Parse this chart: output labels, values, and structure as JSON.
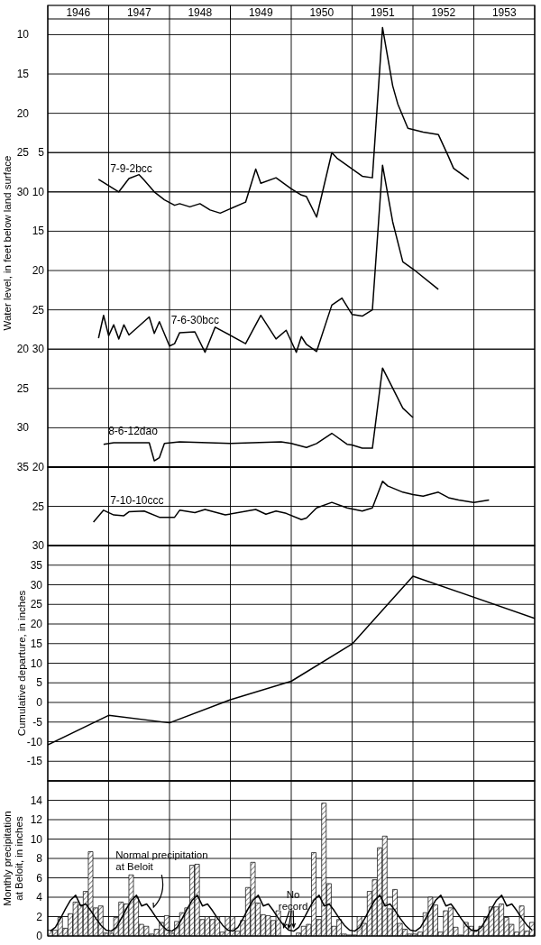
{
  "chart_data": [
    {
      "type": "line",
      "ylabel": "Water level, in feet below land surface",
      "xlim": [
        "1946-01",
        "1954-01"
      ],
      "xticks": [
        {
          "value": "1946-01",
          "label": null
        },
        {
          "value": "1946-07",
          "label": "1946"
        },
        {
          "value": "1947-01",
          "label": null
        },
        {
          "value": "1947-07",
          "label": "1947"
        },
        {
          "value": "1948-01",
          "label": null
        },
        {
          "value": "1948-07",
          "label": "1948"
        },
        {
          "value": "1949-01",
          "label": null
        },
        {
          "value": "1949-07",
          "label": "1949"
        },
        {
          "value": "1950-01",
          "label": null
        },
        {
          "value": "1950-07",
          "label": "1950"
        },
        {
          "value": "1951-01",
          "label": null
        },
        {
          "value": "1951-07",
          "label": "1951"
        },
        {
          "value": "1952-01",
          "label": null
        },
        {
          "value": "1952-07",
          "label": "1952"
        },
        {
          "value": "1953-01",
          "label": null
        },
        {
          "value": "1953-07",
          "label": "1953"
        },
        {
          "value": "1954-01",
          "label": null
        }
      ],
      "ylim": [
        65,
        8
      ],
      "yticks": [
        10,
        15,
        20,
        25,
        30
      ],
      "y2lim": [
        45,
        -12
      ],
      "y2ticks": [
        5,
        10,
        15,
        20,
        25,
        30
      ],
      "y3lim": [
        35,
        -22
      ],
      "y3ticks": [
        20,
        25,
        30,
        35
      ],
      "grid": true,
      "series": [
        {
          "name": "7-9-2bcc",
          "color": "#000000",
          "axis": "y",
          "x": [
            "1946-11",
            "1947-02",
            "1947-03",
            "1947-05",
            "1947-07",
            "1947-08",
            "1947-10",
            "1947-12",
            "1948-02",
            "1948-03",
            "1948-05",
            "1948-07",
            "1948-09",
            "1948-11",
            "1949-04",
            "1949-06",
            "1949-07",
            "1949-10",
            "1950-01",
            "1950-03",
            "1950-04",
            "1950-06",
            "1950-09",
            "1950-10",
            "1951-03",
            "1951-05",
            "1951-07",
            "1951-09",
            "1951-10",
            "1951-12",
            "1952-03",
            "1952-06",
            "1952-08",
            "1952-09",
            "1952-12"
          ],
          "values": [
            28.4,
            29.6,
            30.0,
            28.3,
            27.8,
            28.5,
            30.0,
            31.0,
            31.7,
            31.5,
            31.9,
            31.5,
            32.3,
            32.7,
            31.3,
            27.1,
            28.9,
            28.2,
            29.6,
            30.4,
            30.6,
            33.2,
            25.0,
            25.7,
            28.0,
            28.2,
            9.1,
            16.5,
            18.8,
            21.9,
            22.4,
            22.7,
            25.5,
            27.0,
            28.4
          ]
        },
        {
          "name": "7-6-30bcc",
          "color": "#000000",
          "axis": "y2",
          "x": [
            "1946-11",
            "1946-12",
            "1947-01",
            "1947-02",
            "1947-03",
            "1947-04",
            "1947-05",
            "1947-09",
            "1947-10",
            "1947-11",
            "1948-01",
            "1948-02",
            "1948-03",
            "1948-06",
            "1948-08",
            "1948-10",
            "1949-04",
            "1949-07",
            "1949-10",
            "1949-12",
            "1950-02",
            "1950-03",
            "1950-04",
            "1950-06",
            "1950-09",
            "1950-11",
            "1951-01",
            "1951-03",
            "1951-05",
            "1951-07",
            "1951-09",
            "1951-11",
            "1952-01",
            "1952-06"
          ],
          "values": [
            28.6,
            25.7,
            28.3,
            26.9,
            28.7,
            26.9,
            28.2,
            25.9,
            28.0,
            26.5,
            29.6,
            29.3,
            27.9,
            27.8,
            30.4,
            27.2,
            29.3,
            25.7,
            28.7,
            27.6,
            30.4,
            28.4,
            29.4,
            30.3,
            24.4,
            23.5,
            25.6,
            25.8,
            25.0,
            6.6,
            13.8,
            18.9,
            19.8,
            22.4
          ]
        },
        {
          "name": "8-6-12dao",
          "color": "#000000",
          "axis": "y3",
          "x": [
            "1946-12",
            "1947-02",
            "1947-09",
            "1947-10",
            "1947-11",
            "1947-12",
            "1948-03",
            "1949-01",
            "1949-11",
            "1950-01",
            "1950-04",
            "1950-06",
            "1950-09",
            "1950-12",
            "1951-01",
            "1951-03",
            "1951-05",
            "1951-07",
            "1951-11",
            "1952-01"
          ],
          "values": [
            32.1,
            31.9,
            31.9,
            34.2,
            33.8,
            32.0,
            31.8,
            32.0,
            31.8,
            32.0,
            32.5,
            32.0,
            30.7,
            32.1,
            32.2,
            32.6,
            32.6,
            22.4,
            27.5,
            28.7
          ]
        }
      ]
    },
    {
      "type": "line",
      "xlim": [
        "1946-01",
        "1954-01"
      ],
      "xticks": [
        {
          "value": "1946-01",
          "label": null
        },
        {
          "value": "1947-01",
          "label": null
        },
        {
          "value": "1948-01",
          "label": null
        },
        {
          "value": "1949-01",
          "label": null
        },
        {
          "value": "1950-01",
          "label": null
        },
        {
          "value": "1951-01",
          "label": null
        },
        {
          "value": "1952-01",
          "label": null
        },
        {
          "value": "1953-01",
          "label": null
        },
        {
          "value": "1954-01",
          "label": null
        }
      ],
      "ylim": [
        30,
        20
      ],
      "yticks": [
        20,
        25,
        30
      ],
      "grid": true,
      "tick_labels": "y",
      "series": [
        {
          "name": "7-10-10ccc",
          "color": "#000000",
          "axis": "y",
          "x": [
            "1946-10",
            "1946-12",
            "1947-02",
            "1947-04",
            "1947-05",
            "1947-08",
            "1947-11",
            "1948-02",
            "1948-03",
            "1948-06",
            "1948-08",
            "1948-12",
            "1949-06",
            "1949-08",
            "1949-10",
            "1949-12",
            "1950-03",
            "1950-04",
            "1950-06",
            "1950-09",
            "1950-12",
            "1951-03",
            "1951-05",
            "1951-07",
            "1951-08",
            "1951-11",
            "1952-01",
            "1952-03",
            "1952-06",
            "1952-08",
            "1952-10",
            "1953-01",
            "1953-04"
          ],
          "values": [
            27.0,
            25.5,
            26.1,
            26.2,
            25.7,
            25.6,
            26.4,
            26.4,
            25.5,
            25.8,
            25.4,
            26.1,
            25.4,
            26.0,
            25.6,
            25.9,
            26.7,
            26.5,
            25.2,
            24.5,
            25.2,
            25.6,
            25.2,
            21.8,
            22.4,
            23.2,
            23.5,
            23.7,
            23.2,
            23.9,
            24.2,
            24.5,
            24.2
          ]
        }
      ]
    },
    {
      "type": "line",
      "ylabel": "Cumulative departure, in inches",
      "x": [
        "1946-01",
        "1947-01",
        "1948-01",
        "1949-01",
        "1950-01",
        "1951-01",
        "1952-01",
        "1954-01"
      ],
      "values": [
        -10.8,
        -3.3,
        -5.2,
        0.7,
        5.4,
        14.9,
        32.2,
        21.4
      ],
      "color": "#000000",
      "xlim": [
        "1946-01",
        "1954-01"
      ],
      "xticks": [
        {
          "value": "1946-01",
          "label": null
        },
        {
          "value": "1947-01",
          "label": null
        },
        {
          "value": "1948-01",
          "label": null
        },
        {
          "value": "1949-01",
          "label": null
        },
        {
          "value": "1950-01",
          "label": null
        },
        {
          "value": "1951-01",
          "label": null
        },
        {
          "value": "1952-01",
          "label": null
        },
        {
          "value": "1953-01",
          "label": null
        },
        {
          "value": "1954-01",
          "label": null
        }
      ],
      "ylim": [
        -20,
        40
      ],
      "yticks": [
        -15,
        -10,
        -5,
        0,
        5,
        10,
        15,
        20,
        25,
        30,
        35
      ],
      "grid": true,
      "tick_labels": "y"
    },
    {
      "type": "bar",
      "ylabel": "Monthly precipitation at Beloit, in inches",
      "xlim": [
        "1946-01",
        "1954-01"
      ],
      "xticks": [
        {
          "value": "1946-01",
          "label": null
        },
        {
          "value": "1947-01",
          "label": null
        },
        {
          "value": "1948-01",
          "label": null
        },
        {
          "value": "1949-01",
          "label": null
        },
        {
          "value": "1950-01",
          "label": null
        },
        {
          "value": "1951-01",
          "label": null
        },
        {
          "value": "1952-01",
          "label": null
        },
        {
          "value": "1953-01",
          "label": null
        },
        {
          "value": "1954-01",
          "label": null
        }
      ],
      "ylim": [
        0,
        16
      ],
      "yticks": [
        0,
        2,
        4,
        6,
        8,
        10,
        12,
        14
      ],
      "grid": true,
      "tick_labels": "y",
      "x": [
        "1946-01-16",
        "1946-02-16",
        "1946-03-16",
        "1946-04-16",
        "1946-05-16",
        "1946-06-16",
        "1946-07-16",
        "1946-08-16",
        "1946-09-16",
        "1946-10-16",
        "1946-11-16",
        "1946-12-16",
        "1947-01-16",
        "1947-02-16",
        "1947-03-16",
        "1947-04-16",
        "1947-05-16",
        "1947-06-16",
        "1947-07-16",
        "1947-08-16",
        "1947-09-16",
        "1947-10-16",
        "1947-11-16",
        "1947-12-16",
        "1948-01-16",
        "1948-02-16",
        "1948-03-16",
        "1948-04-16",
        "1948-05-16",
        "1948-06-16",
        "1948-07-16",
        "1948-08-16",
        "1948-09-16",
        "1948-10-16",
        "1948-11-16",
        "1948-12-16",
        "1949-01-16",
        "1949-02-16",
        "1949-03-16",
        "1949-04-16",
        "1949-05-16",
        "1949-06-16",
        "1949-07-16",
        "1949-08-16",
        "1949-09-16",
        "1949-10-16",
        "1949-11-16",
        "1949-12-16",
        "1950-01-16",
        "1950-02-16",
        "1950-03-16",
        "1950-04-16",
        "1950-05-16",
        "1950-06-16",
        "1950-07-16",
        "1950-08-16",
        "1950-09-16",
        "1950-10-16",
        "1950-11-16",
        "1950-12-16",
        "1951-01-16",
        "1951-02-16",
        "1951-03-16",
        "1951-04-16",
        "1951-05-16",
        "1951-06-16",
        "1951-07-16",
        "1951-08-16",
        "1951-09-16",
        "1951-10-16",
        "1951-11-16",
        "1951-12-16",
        "1952-01-16",
        "1952-02-16",
        "1952-03-16",
        "1952-04-16",
        "1952-05-16",
        "1952-06-16",
        "1952-07-16",
        "1952-08-16",
        "1952-09-16",
        "1952-10-16",
        "1952-11-16",
        "1952-12-16",
        "1953-01-16",
        "1953-02-16",
        "1953-03-16",
        "1953-04-16",
        "1953-05-16",
        "1953-06-16",
        "1953-07-16",
        "1953-08-16",
        "1953-09-16",
        "1953-10-16",
        "1953-11-16",
        "1953-12-16"
      ],
      "series": [
        {
          "type": "bar",
          "color": "#000000",
          "values": [
            0.6,
            0.6,
            1.9,
            0.8,
            2.3,
            3.5,
            3.2,
            4.6,
            8.7,
            2.9,
            3.1,
            0.3,
            0.3,
            1.9,
            3.5,
            3.3,
            6.3,
            4.0,
            1.2,
            1.0,
            0.2,
            0.7,
            1.4,
            2.1,
            0.3,
            1.5,
            2.4,
            2.9,
            7.3,
            7.4,
            1.7,
            2.0,
            1.7,
            2.0,
            0.4,
            2.0,
            2.0,
            0.5,
            1.6,
            5.0,
            7.6,
            3.4,
            2.2,
            2.1,
            1.6,
            2.6,
            null,
            null,
            null,
            0.3,
            1.0,
            1.2,
            8.6,
            1.7,
            13.7,
            5.4,
            1.0,
            1.7,
            0.2,
            0.1,
            0.1,
            2.0,
            1.3,
            4.6,
            5.8,
            9.1,
            10.3,
            2.8,
            4.8,
            1.3,
            0.7,
            0.2,
            0.2,
            0.4,
            2.4,
            4.0,
            3.2,
            0.4,
            2.6,
            2.9,
            0.9,
            0.1,
            1.4,
            1.0,
            0.6,
            1.0,
            1.9,
            3.0,
            3.0,
            3.3,
            1.9,
            1.2,
            0.4,
            3.1,
            0.5,
            1.4
          ]
        },
        {
          "type": "line",
          "color": "#000000",
          "values": [
            0.5,
            0.9,
            1.8,
            2.8,
            3.7,
            4.2,
            3.1,
            3.3,
            2.6,
            1.8,
            1.1,
            0.6,
            0.5,
            0.9,
            1.8,
            2.8,
            3.7,
            4.2,
            3.1,
            3.3,
            2.6,
            1.8,
            1.1,
            0.6,
            0.5,
            0.9,
            1.8,
            2.8,
            3.7,
            4.2,
            3.1,
            3.3,
            2.6,
            1.8,
            1.1,
            0.6,
            0.5,
            0.9,
            1.8,
            2.8,
            3.7,
            4.2,
            3.1,
            3.3,
            2.6,
            1.8,
            1.1,
            0.6,
            0.5,
            0.9,
            1.8,
            2.8,
            3.7,
            4.2,
            3.1,
            3.3,
            2.6,
            1.8,
            1.1,
            0.6,
            0.5,
            0.9,
            1.8,
            2.8,
            3.7,
            4.2,
            3.1,
            3.3,
            2.6,
            1.8,
            1.1,
            0.6,
            0.5,
            0.9,
            1.8,
            2.8,
            3.7,
            4.2,
            3.1,
            3.3,
            2.6,
            1.8,
            1.1,
            0.6,
            0.5,
            0.9,
            1.8,
            2.8,
            3.7,
            4.2,
            3.1,
            3.3,
            2.6,
            1.8,
            1.1,
            0.6
          ]
        }
      ],
      "annotations": [
        {
          "text": "Normal precipitation at Beloit",
          "x": "1947-09-16",
          "y": 2.6
        },
        {
          "text": "No record",
          "x": "1949-12-16",
          "y": 0.6
        }
      ]
    }
  ]
}
